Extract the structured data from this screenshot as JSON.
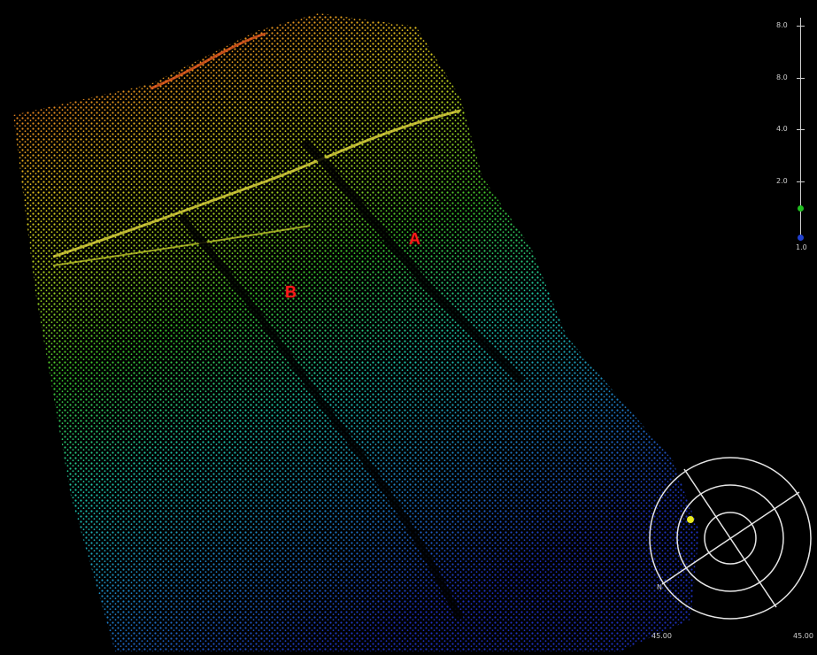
{
  "view": {
    "description_free": true,
    "colormap": [
      "#2034c8",
      "#1f8cd0",
      "#1fd0b0",
      "#3fd030",
      "#b8e020",
      "#f0d020",
      "#f08020",
      "#e83010"
    ]
  },
  "markers": {
    "a": "A",
    "b": "B"
  },
  "scale": {
    "ticks": [
      "8.0",
      "8.0",
      "4.0",
      "2.0"
    ],
    "bottom": "1.0",
    "colors": {
      "line": "#cfcfcf",
      "green_dot": "#20c020",
      "blue_dot": "#2040d0"
    }
  },
  "compass": {
    "north_label": "N",
    "left_label": "45.00",
    "right_label": "45.00",
    "sun_color": "#e8e820",
    "ring_color": "#e6e6e6"
  }
}
